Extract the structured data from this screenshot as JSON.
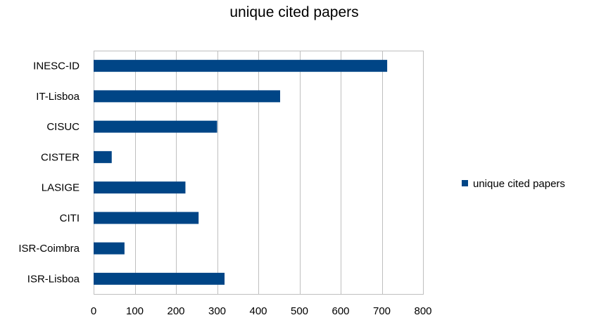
{
  "chart_data": {
    "type": "bar",
    "orientation": "horizontal",
    "title": "unique cited papers",
    "categories": [
      "INESC-ID",
      "IT-Lisboa",
      "CISUC",
      "CISTER",
      "LASIGE",
      "CITI",
      "ISR-Coimbra",
      "ISR-Lisboa"
    ],
    "series": [
      {
        "name": "unique cited papers",
        "color": "#004586",
        "values": [
          713,
          453,
          300,
          44,
          223,
          255,
          75,
          318
        ]
      }
    ],
    "xlim": [
      0,
      800
    ],
    "xticks": [
      0,
      100,
      200,
      300,
      400,
      500,
      600,
      700,
      800
    ],
    "xticks_labels": [
      "0",
      "100",
      "200",
      "300",
      "400",
      "500",
      "600",
      "700",
      "800"
    ],
    "grid": "vertical",
    "legend_position": "right"
  }
}
